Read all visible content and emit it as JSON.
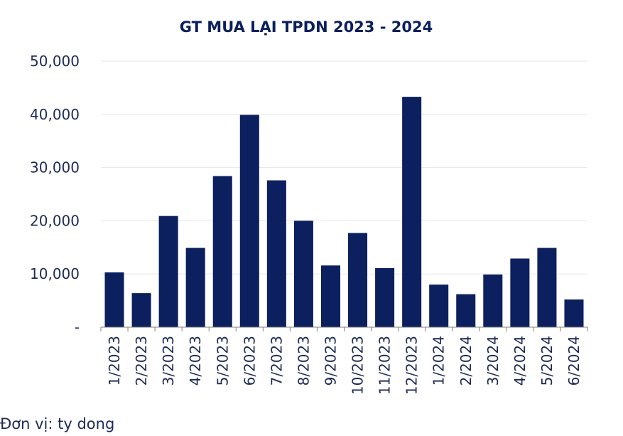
{
  "chart_data": {
    "type": "bar",
    "title": "GT MUA LẠI TPDN 2023 - 2024",
    "categories": [
      "1/2023",
      "2/2023",
      "3/2023",
      "4/2023",
      "5/2023",
      "6/2023",
      "7/2023",
      "8/2023",
      "9/2023",
      "10/2023",
      "11/2023",
      "12/2023",
      "1/2024",
      "2/2024",
      "3/2024",
      "4/2024",
      "5/2024",
      "6/2024"
    ],
    "values": [
      10300,
      6400,
      20900,
      14900,
      28400,
      39900,
      27600,
      20000,
      11600,
      17700,
      11100,
      43300,
      8000,
      6200,
      9900,
      12900,
      14900,
      5200
    ],
    "ylim": [
      0,
      50000
    ],
    "yticks": [
      0,
      10000,
      20000,
      30000,
      40000,
      50000
    ],
    "ytick_labels": [
      "-",
      "10,000",
      "20,000",
      "30,000",
      "40,000",
      "50,000"
    ],
    "xlabel": "",
    "ylabel": "",
    "grid": true,
    "bar_color": "#0c1f5e"
  },
  "footnote": "Đơn vị: ty dong"
}
